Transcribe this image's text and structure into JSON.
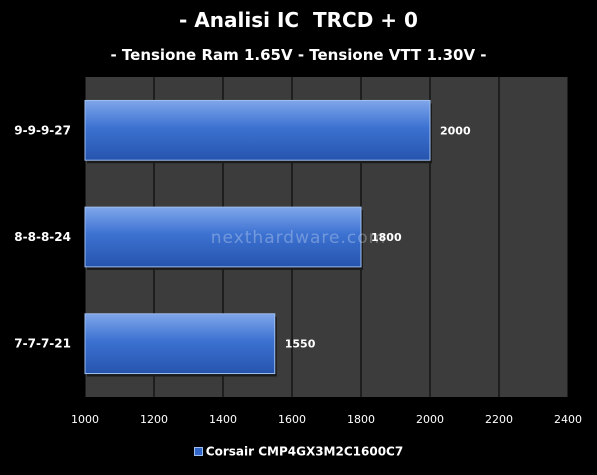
{
  "chart_data": {
    "type": "bar",
    "orientation": "horizontal",
    "title": "- Analisi IC  TRCD + 0",
    "subtitle": "- Tensione Ram 1.65V - Tensione VTT 1.30V -",
    "categories": [
      "9-9-9-27",
      "8-8-8-24",
      "7-7-7-21"
    ],
    "series": [
      {
        "name": "Corsair CMP4GX3M2C1600C7",
        "values": [
          2000,
          1800,
          1550
        ]
      }
    ],
    "xlim": [
      1000,
      2400
    ],
    "xticks": [
      1000,
      1200,
      1400,
      1600,
      1800,
      2000,
      2200,
      2400
    ],
    "xlabel": "",
    "ylabel": "",
    "grid": true,
    "legend_position": "bottom"
  },
  "colors": {
    "background": "#000000",
    "plot_area": "#3c3c3c",
    "gridline": "#000000",
    "bar_fill": "#3a6fce",
    "bar_edge": "#9fbef0"
  },
  "watermark": "nexthardware.com"
}
